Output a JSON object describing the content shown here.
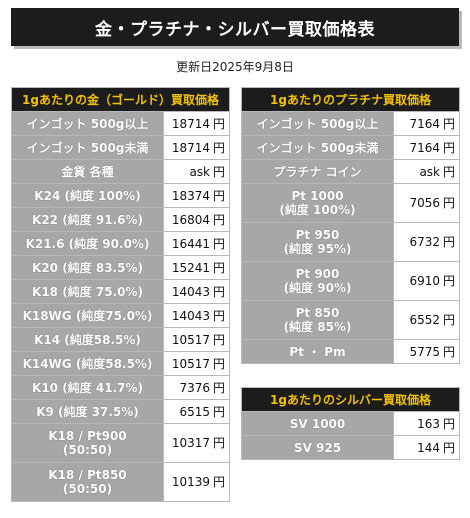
{
  "title": "金・プラチナ・シルバー買取価格表",
  "updated": "更新日2025年9月8日",
  "gold": {
    "header": "1gあたりの金（ゴールド）買取価格",
    "rows": [
      {
        "label": "インゴット 500g以上",
        "value": "18714",
        "unit": "円"
      },
      {
        "label": "インゴット 500g未満",
        "value": "18714",
        "unit": "円"
      },
      {
        "label": "金貨 各種",
        "value": "ask",
        "unit": "円"
      },
      {
        "label": "K24 (純度 100%)",
        "value": "18374",
        "unit": "円"
      },
      {
        "label": "K22 (純度 91.6%)",
        "value": "16804",
        "unit": "円"
      },
      {
        "label": "K21.6 (純度 90.0%)",
        "value": "16441",
        "unit": "円"
      },
      {
        "label": "K20 (純度 83.5%)",
        "value": "15241",
        "unit": "円"
      },
      {
        "label": "K18 (純度 75.0%)",
        "value": "14043",
        "unit": "円"
      },
      {
        "label": "K18WG (純度75.0%)",
        "value": "14043",
        "unit": "円"
      },
      {
        "label": "K14 (純度58.5%)",
        "value": "10517",
        "unit": "円"
      },
      {
        "label": "K14WG (純度58.5%)",
        "value": "10517",
        "unit": "円"
      },
      {
        "label": "K10 (純度 41.7%)",
        "value": "7376",
        "unit": "円"
      },
      {
        "label": "K9 (純度 37.5%)",
        "value": "6515",
        "unit": "円"
      },
      {
        "label": "K18 / Pt900",
        "label2": "(50:50)",
        "value": "10317",
        "unit": "円"
      },
      {
        "label": "K18 / Pt850",
        "label2": "(50:50)",
        "value": "10139",
        "unit": "円"
      }
    ]
  },
  "platinum": {
    "header": "1gあたりのプラチナ買取価格",
    "rows": [
      {
        "label": "インゴット 500g以上",
        "value": "7164",
        "unit": "円"
      },
      {
        "label": "インゴット 500g未満",
        "value": "7164",
        "unit": "円"
      },
      {
        "label": "プラチナ コイン",
        "value": "ask",
        "unit": "円"
      },
      {
        "label": "Pt 1000",
        "label2": "(純度 100%)",
        "value": "7056",
        "unit": "円"
      },
      {
        "label": "Pt 950",
        "label2": "(純度 95%)",
        "value": "6732",
        "unit": "円"
      },
      {
        "label": "Pt 900",
        "label2": "(純度 90%)",
        "value": "6910",
        "unit": "円"
      },
      {
        "label": "Pt 850",
        "label2": "(純度 85%)",
        "value": "6552",
        "unit": "円"
      },
      {
        "label": "Pt ・ Pm",
        "value": "5775",
        "unit": "円"
      }
    ]
  },
  "silver": {
    "header": "1gあたりのシルバー買取価格",
    "rows": [
      {
        "label": "SV 1000",
        "value": "163",
        "unit": "円"
      },
      {
        "label": "SV 925",
        "value": "144",
        "unit": "円"
      }
    ]
  },
  "colors": {
    "header_bg": "#1c1c1c",
    "header_text": "#f2c200",
    "label_bg": "#a7a7a7"
  }
}
